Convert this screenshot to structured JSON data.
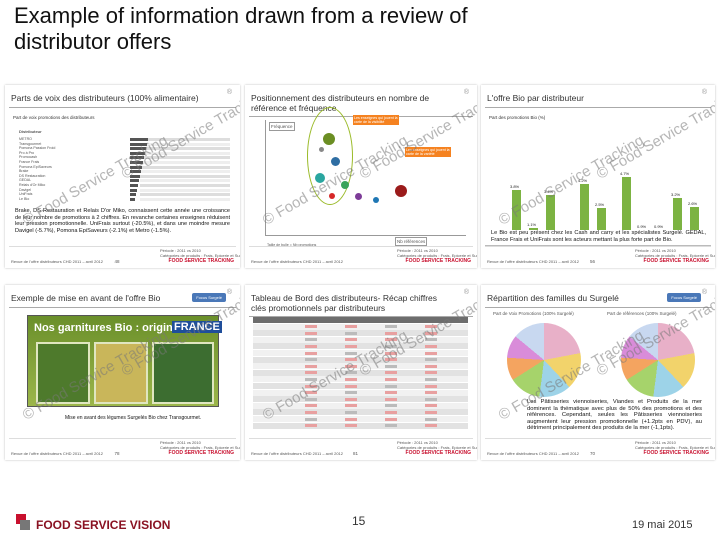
{
  "header": {
    "title": "Example of information drawn from a review of distributor offers"
  },
  "common": {
    "source": "Revue de l'offre distributeurs CHD 2011 – avril 2012",
    "brand": "FOOD SERVICE TRACKING",
    "period": "Période : 2011 vs 2010",
    "scope": "Catégories de produits : Frais, Epicerie et Surgelé",
    "watermark": "© Food Service Tracking",
    "focus": "Focus Surgelé"
  },
  "panels": [
    {
      "title": "Parts de voix des distributeurs (100% alimentaire)",
      "subtitle": "Part de voix promotions des distributeurs",
      "column": "Distributeur",
      "rows": [
        "METRO",
        "Transgourmet",
        "Pomona Passion Froid",
        "Pro à Pro",
        "Promocash",
        "France Frais",
        "Pomona EpiSaveurs",
        "Brake",
        "DS Restauration",
        "GEDAL",
        "Relais d'Or Miko",
        "Davigel",
        "UniFrais",
        "Le Bio"
      ],
      "text": "Brake, DS Restauration et Relais D'or Miko, connaissent cette année une croissance de leur nombre de promotions à 2 chiffres. En revanche certaines enseignes réduisent leur pression promotionnelle. UniFrais surtout (-20.5%), et dans une moindre mesure Davigel (-5.7%), Pomona EpiSaveurs (-2.1%) et Metro (-1.5%).",
      "page": "48"
    },
    {
      "title": "Positionnement des distributeurs en nombre de référence et fréquence",
      "y_label": "Fréquence",
      "x_label": "Nb références",
      "box_a": "Les enseignes qui jouent la carte de la visibilité",
      "box_b": "Les enseignes qui jouent la carte de la variété",
      "note": "Taille de bulle = Nb promotions"
    },
    {
      "title": "L'offre Bio par distributeur",
      "subtitle": "Part des promotions Bio (%)",
      "bars": [
        {
          "value": 0.5,
          "label": "0.5%"
        },
        {
          "value": 3.8,
          "label": "3.8%"
        },
        {
          "value": 1.1,
          "label": "1.1%"
        },
        {
          "value": 3.4,
          "label": "3.4%"
        },
        {
          "value": 0.6,
          "label": "0.6%"
        },
        {
          "value": 4.2,
          "label": "4.2%"
        },
        {
          "value": 2.5,
          "label": "2.5%"
        },
        {
          "value": 4.7,
          "label": "4.7%"
        },
        {
          "value": 0.9,
          "label": "0.9%"
        },
        {
          "value": 0.9,
          "label": "0.9%"
        },
        {
          "value": 3.2,
          "label": "3.2%"
        },
        {
          "value": 2.6,
          "label": "2.6%"
        }
      ],
      "text": "Le Bio est peu présent chez les Cash and carry et les spécialistes Surgelé. GEDAL, France Frais et UniFrais sont les acteurs mettant la plus forte part de Bio.",
      "page": "56"
    },
    {
      "title": "Exemple de mise en avant de l'offre Bio",
      "banner": "Nos garnitures Bio : origine",
      "banner_strong": "FRANCE",
      "text": "Mise en avant des légumes Surgelés Bio chez Transgourmet.",
      "page": "78"
    },
    {
      "title": "Tableau de Bord des distributeurs- Récap chiffres clés promotionnels par distributeurs",
      "page": "81"
    },
    {
      "title": "Répartition des familles du Surgelé",
      "pie_a": "Part de Voix Promotions (100% Surgelé)",
      "pie_b": "Part de références (100% Surgelé)",
      "text": "Les Pâtisseries viennoiseries, Viandes et Produits de la mer dominent la thématique avec plus de 50% des promotions et des références. Cependant, seules les Pâtisseries viennoiseries augmentent leur pression promotionnelle (+1.2pts en PDV), au détriment principalement des produits de la mer (-1,1pts).",
      "page": "70"
    }
  ],
  "footer": {
    "logo": "FOOD SERVICE VISION",
    "page": "15",
    "date": "19 mai 2015"
  }
}
